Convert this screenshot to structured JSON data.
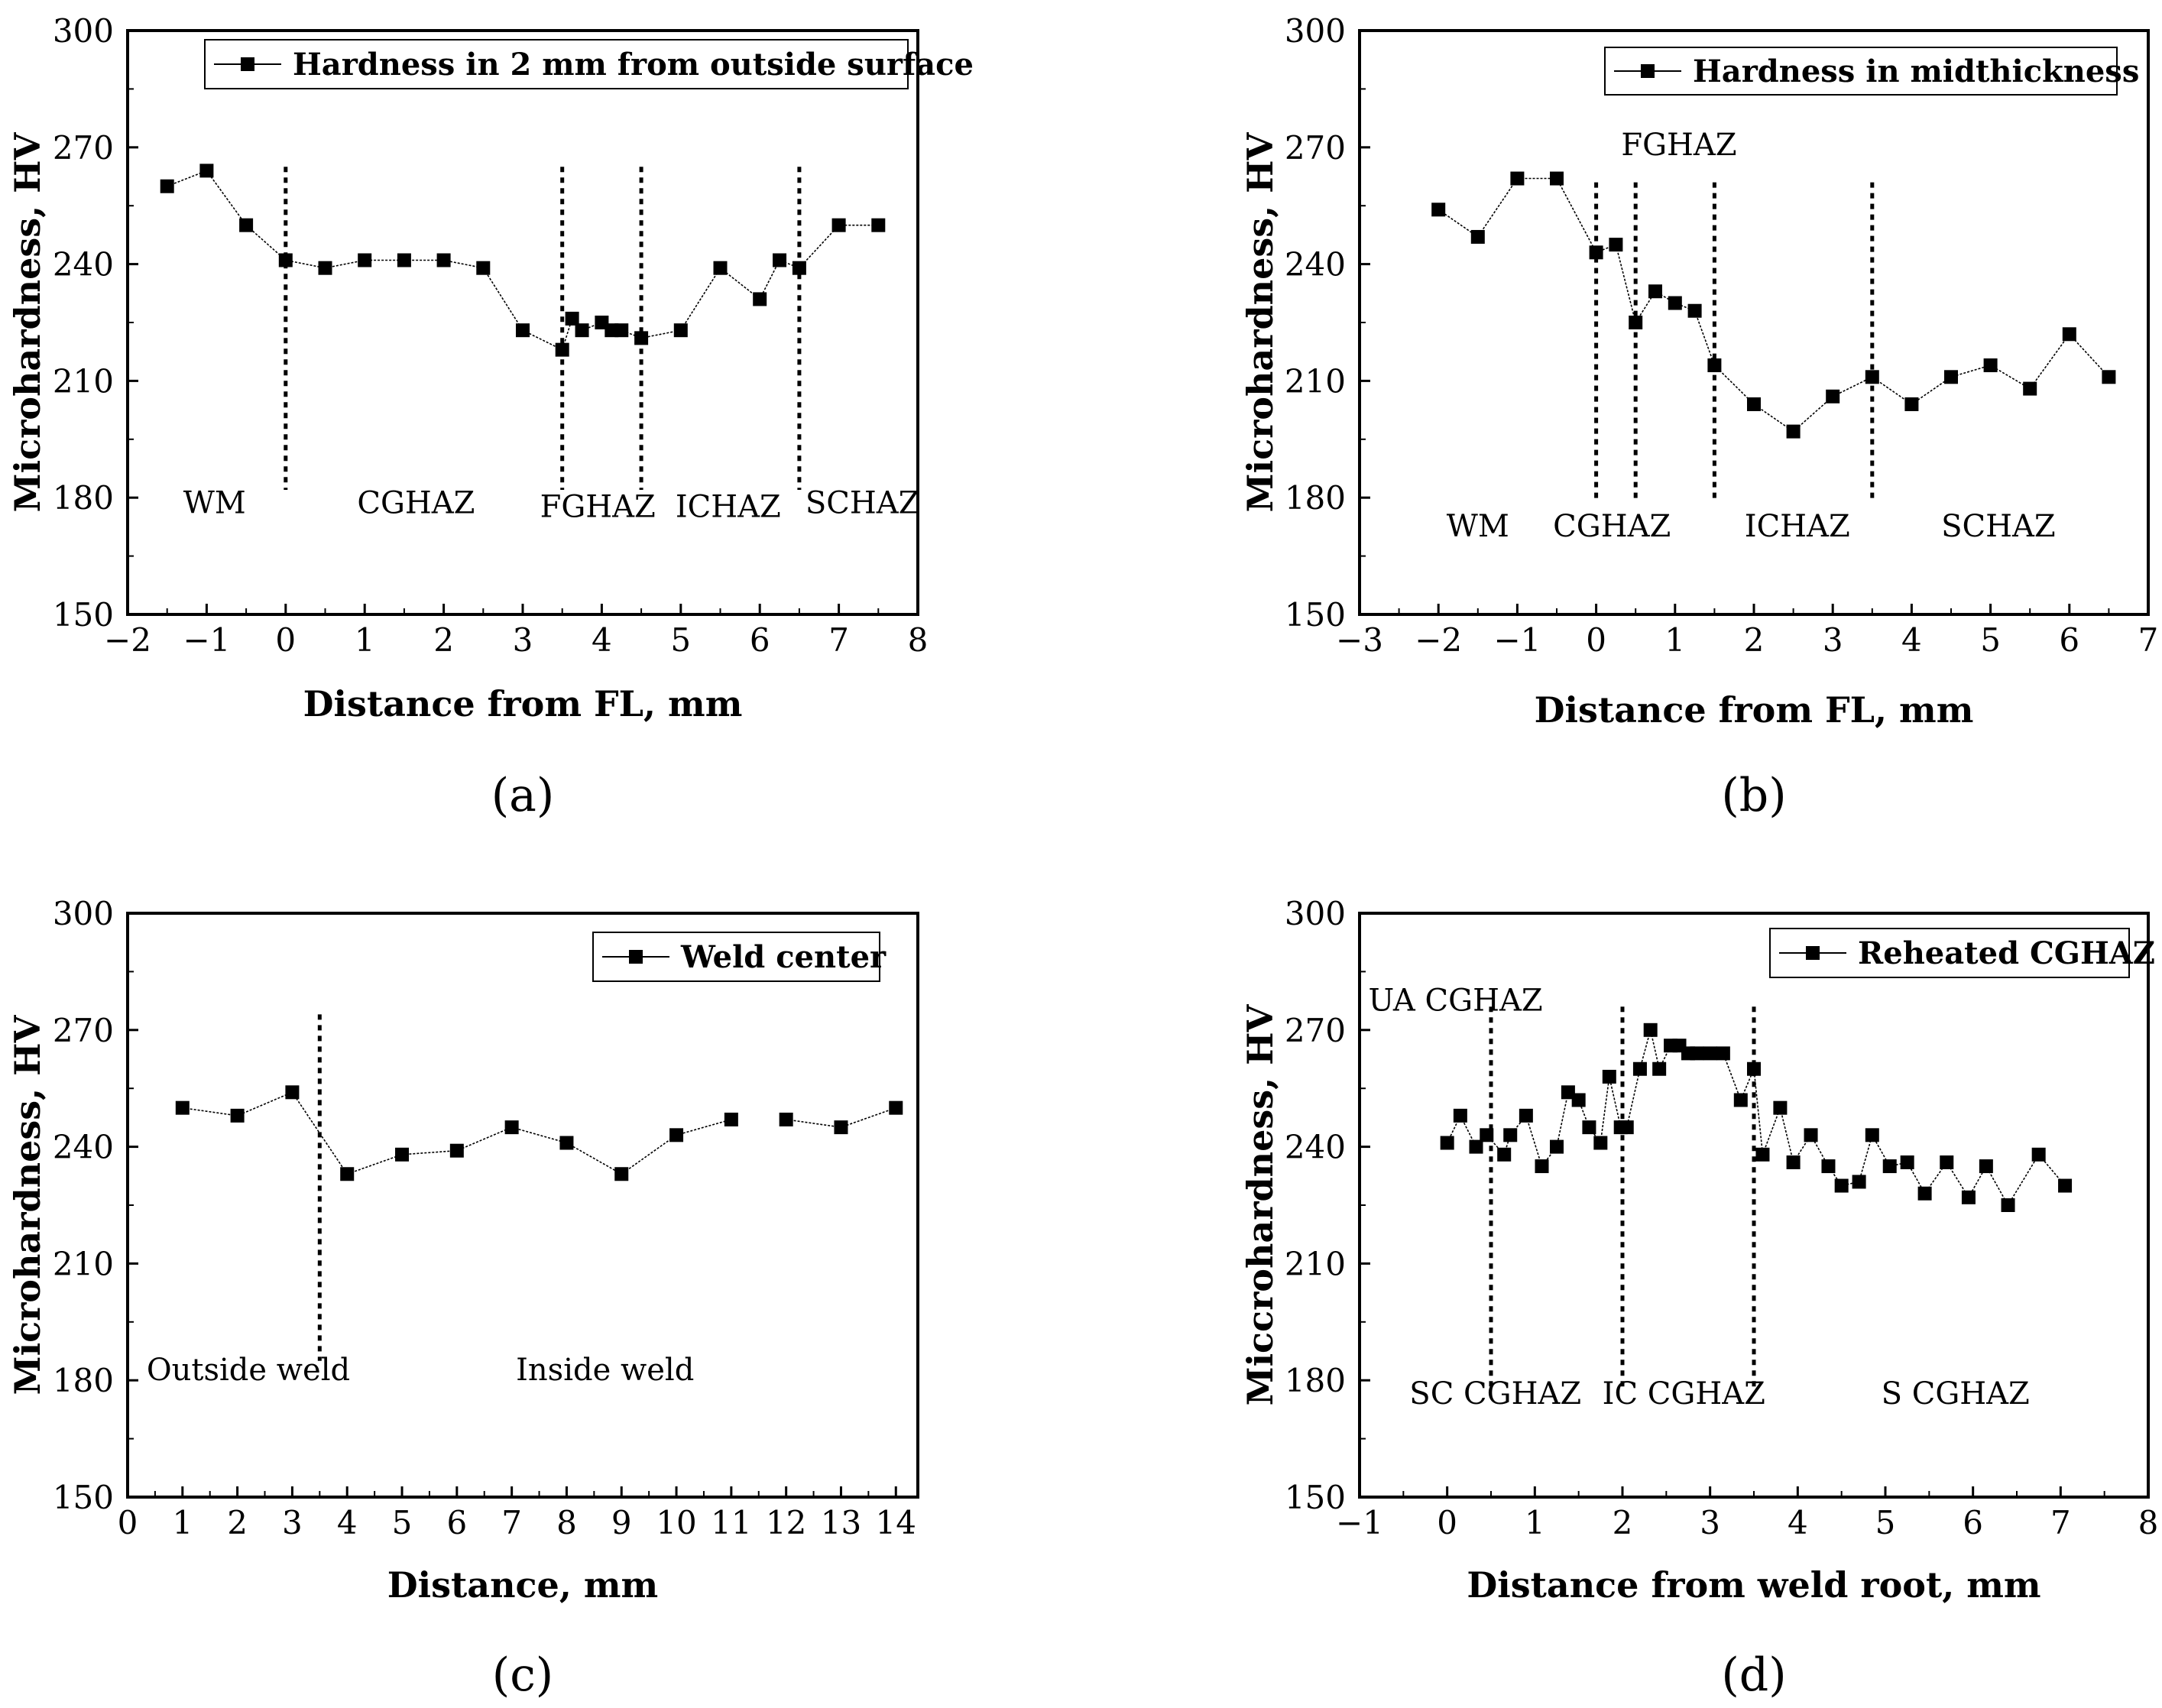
{
  "figure": {
    "panels": [
      "(a)",
      "(b)",
      "(c)",
      "(d)"
    ]
  },
  "chart_data": [
    {
      "type": "line",
      "panel_label": "(a)",
      "xlabel": "Distance from FL, mm",
      "ylabel": "Microhardness, HV",
      "xlim": [
        -2,
        8
      ],
      "ylim": [
        150,
        300
      ],
      "xticks": [
        -2,
        -1,
        0,
        1,
        2,
        3,
        4,
        5,
        6,
        7,
        8
      ],
      "xtick_labels": [
        "−2",
        "−1",
        "0",
        "1",
        "2",
        "3",
        "4",
        "5",
        "6",
        "7",
        "8"
      ],
      "yticks": [
        150,
        180,
        210,
        240,
        270,
        300
      ],
      "legend_position": "top-right",
      "series": [
        {
          "name": "Hardness in 2 mm from outside surface",
          "x": [
            -1.5,
            -1,
            -0.5,
            0,
            0.5,
            1,
            1.5,
            2,
            2.5,
            3,
            3.5,
            3.625,
            3.75,
            4,
            4.125,
            4.25,
            4.5,
            5,
            5.5,
            6,
            6.25,
            6.5,
            7,
            7.5
          ],
          "y": [
            260,
            264,
            250,
            241,
            239,
            241,
            241,
            241,
            239,
            223,
            218,
            226,
            223,
            225,
            223,
            223,
            221,
            223,
            239,
            231,
            241,
            239,
            250,
            250
          ]
        }
      ],
      "zone_lines_x": [
        0,
        3.5,
        4.5,
        6.5
      ],
      "zone_line_range_y": [
        182,
        265
      ],
      "zones": [
        {
          "label": "WM",
          "x": -0.9,
          "y": 176,
          "anchor": "middle"
        },
        {
          "label": "CGHAZ",
          "x": 1.65,
          "y": 176,
          "anchor": "middle"
        },
        {
          "label": "FGHAZ",
          "x": 3.95,
          "y": 175,
          "anchor": "middle"
        },
        {
          "label": "ICHAZ",
          "x": 5.6,
          "y": 175,
          "anchor": "middle"
        },
        {
          "label": "SCHAZ",
          "x": 7.3,
          "y": 176,
          "anchor": "middle"
        }
      ]
    },
    {
      "type": "line",
      "panel_label": "(b)",
      "xlabel": "Distance from FL, mm",
      "ylabel": "Microhardness, HV",
      "xlim": [
        -3,
        7
      ],
      "ylim": [
        150,
        300
      ],
      "xticks": [
        -3,
        -2,
        -1,
        0,
        1,
        2,
        3,
        4,
        5,
        6,
        7
      ],
      "xtick_labels": [
        "−3",
        "−2",
        "−1",
        "0",
        "1",
        "2",
        "3",
        "4",
        "5",
        "6",
        "7"
      ],
      "yticks": [
        150,
        180,
        210,
        240,
        270,
        300
      ],
      "legend_position": "top-right",
      "series": [
        {
          "name": "Hardness in midthickness",
          "x": [
            -2,
            -1.5,
            -1,
            -0.5,
            0,
            0.25,
            0.5,
            0.75,
            1,
            1.25,
            1.5,
            2,
            2.5,
            3,
            3.5,
            4,
            4.5,
            5,
            5.5,
            6,
            6.5
          ],
          "y": [
            254,
            247,
            262,
            262,
            243,
            245,
            225,
            233,
            230,
            228,
            214,
            204,
            197,
            206,
            211,
            204,
            211,
            214,
            208,
            222,
            211
          ]
        }
      ],
      "zone_lines_x": [
        0,
        0.5,
        1.5,
        3.5
      ],
      "zone_line_range_y": [
        179,
        261
      ],
      "zones": [
        {
          "label": "FGHAZ",
          "x": 1.05,
          "y": 268,
          "anchor": "middle"
        },
        {
          "label": "WM",
          "x": -1.5,
          "y": 170,
          "anchor": "middle"
        },
        {
          "label": "CGHAZ",
          "x": 0.2,
          "y": 170,
          "anchor": "middle"
        },
        {
          "label": "ICHAZ",
          "x": 2.55,
          "y": 170,
          "anchor": "middle"
        },
        {
          "label": "SCHAZ",
          "x": 5.1,
          "y": 170,
          "anchor": "middle"
        }
      ]
    },
    {
      "type": "line",
      "panel_label": "(c)",
      "xlabel": "Distance, mm",
      "ylabel": "Microhardness, HV",
      "xlim": [
        0,
        14.4
      ],
      "ylim": [
        150,
        300
      ],
      "xticks": [
        0,
        1,
        2,
        3,
        4,
        5,
        6,
        7,
        8,
        9,
        10,
        11,
        12,
        13,
        14
      ],
      "xtick_labels": [
        "0",
        "1",
        "2",
        "3",
        "4",
        "5",
        "6",
        "7",
        "8",
        "9",
        "10",
        "11",
        "12",
        "13",
        "14"
      ],
      "yticks": [
        150,
        180,
        210,
        240,
        270,
        300
      ],
      "legend_position": "top-right",
      "series": [
        {
          "name": "Weld center",
          "segments": [
            {
              "x": [
                1,
                2,
                3,
                4,
                5,
                6,
                7,
                8,
                9,
                10,
                11
              ],
              "y": [
                250,
                248,
                254,
                233,
                238,
                239,
                245,
                241,
                233,
                243,
                247
              ]
            },
            {
              "x": [
                12,
                13,
                14
              ],
              "y": [
                247,
                245,
                250
              ]
            }
          ]
        }
      ],
      "zone_lines_x": [
        3.5
      ],
      "zone_line_range_y": [
        185,
        274
      ],
      "zones": [
        {
          "label": "Outside weld",
          "x": 2.2,
          "y": 180,
          "anchor": "middle"
        },
        {
          "label": "Inside weld",
          "x": 8.7,
          "y": 180,
          "anchor": "middle"
        }
      ]
    },
    {
      "type": "line",
      "panel_label": "(d)",
      "xlabel": "Distance from weld root, mm",
      "ylabel": "Miccrohardness, HV",
      "xlim": [
        -1,
        8
      ],
      "ylim": [
        150,
        300
      ],
      "xticks": [
        -1,
        0,
        1,
        2,
        3,
        4,
        5,
        6,
        7,
        8
      ],
      "xtick_labels": [
        "−1",
        "0",
        "1",
        "2",
        "3",
        "4",
        "5",
        "6",
        "7",
        "8"
      ],
      "yticks": [
        150,
        180,
        210,
        240,
        270,
        300
      ],
      "legend_position": "top-right",
      "series": [
        {
          "name": "Reheated CGHAZ",
          "x": [
            0,
            0.15,
            0.33,
            0.45,
            0.65,
            0.72,
            0.9,
            1.08,
            1.25,
            1.38,
            1.5,
            1.62,
            1.75,
            1.85,
            1.98,
            2.05,
            2.2,
            2.32,
            2.42,
            2.55,
            2.65,
            2.75,
            2.85,
            3.0,
            3.15,
            3.35,
            3.5,
            3.6,
            3.8,
            3.95,
            4.15,
            4.35,
            4.5,
            4.7,
            4.85,
            5.05,
            5.25,
            5.45,
            5.7,
            5.95,
            6.15,
            6.4,
            6.75,
            7.05
          ],
          "y": [
            241,
            248,
            240,
            243,
            238,
            243,
            248,
            235,
            240,
            254,
            252,
            245,
            241,
            258,
            245,
            245,
            260,
            270,
            260,
            266,
            266,
            264,
            264,
            264,
            264,
            252,
            260,
            238,
            250,
            236,
            243,
            235,
            230,
            231,
            243,
            235,
            236,
            228,
            236,
            227,
            235,
            225,
            238,
            230
          ]
        }
      ],
      "zone_lines_x": [
        0.5,
        2.0,
        3.5
      ],
      "zone_line_range_y": [
        178,
        276
      ],
      "zones": [
        {
          "label": "UA CGHAZ",
          "x": -0.9,
          "y": 275,
          "anchor": "start"
        },
        {
          "label": "SC CGHAZ",
          "x": 0.55,
          "y": 174,
          "anchor": "middle"
        },
        {
          "label": "IC CGHAZ",
          "x": 2.7,
          "y": 174,
          "anchor": "middle"
        },
        {
          "label": "S CGHAZ",
          "x": 5.8,
          "y": 174,
          "anchor": "middle"
        }
      ]
    }
  ]
}
